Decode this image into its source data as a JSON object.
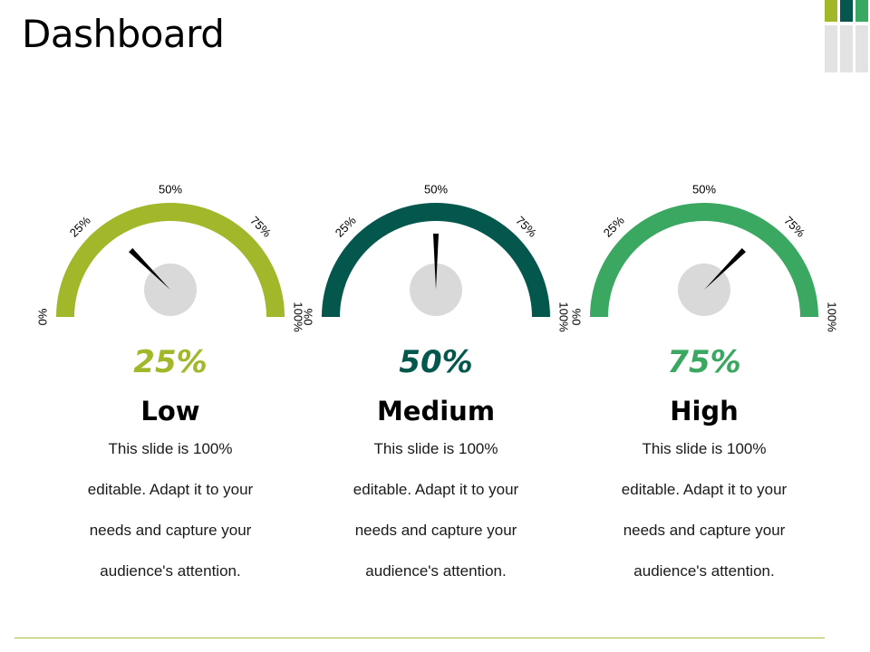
{
  "page": {
    "title": "Dashboard"
  },
  "colors": {
    "lime": "#a2b72a",
    "teal": "#03574d",
    "green": "#3ba862",
    "gray_block": "#e3e3e3",
    "needle": "#000000",
    "hub": "#d9d9d9",
    "footer_rule": "#a8bf3c"
  },
  "tick_labels": [
    "0%",
    "25%",
    "50%",
    "75%",
    "100%"
  ],
  "gauges": [
    {
      "value": 25,
      "value_label": "25%",
      "level": "Low",
      "color": "#a2b72a",
      "description_lines": [
        "This slide is 100%",
        "editable. Adapt it to your",
        "needs and capture your",
        "audience's attention."
      ]
    },
    {
      "value": 50,
      "value_label": "50%",
      "level": "Medium",
      "color": "#03574d",
      "description_lines": [
        "This slide is 100%",
        "editable. Adapt it to your",
        "needs and capture your",
        "audience's attention."
      ]
    },
    {
      "value": 75,
      "value_label": "75%",
      "level": "High",
      "color": "#3ba862",
      "description_lines": [
        "This slide is 100%",
        "editable. Adapt it to your",
        "needs and capture your",
        "audience's attention."
      ]
    }
  ]
}
